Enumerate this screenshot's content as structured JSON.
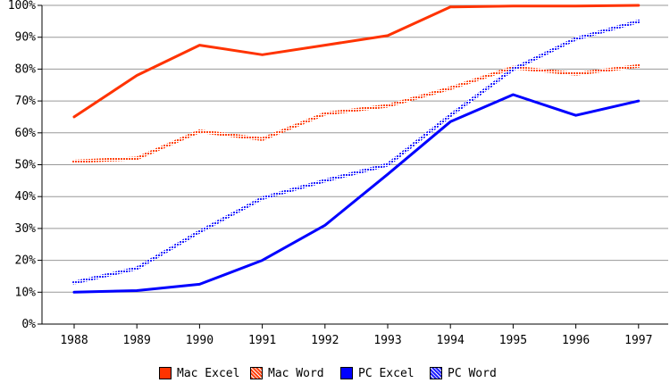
{
  "chart_data": {
    "type": "line",
    "title": "",
    "xlabel": "",
    "ylabel": "",
    "x": [
      1988,
      1989,
      1990,
      1991,
      1992,
      1993,
      1994,
      1995,
      1996,
      1997
    ],
    "ylim": [
      0,
      100
    ],
    "yticks": [
      "0%",
      "10%",
      "20%",
      "30%",
      "40%",
      "50%",
      "60%",
      "70%",
      "80%",
      "90%",
      "100%"
    ],
    "xticks": [
      "1988",
      "1989",
      "1990",
      "1991",
      "1992",
      "1993",
      "1994",
      "1995",
      "1996",
      "1997"
    ],
    "grid": true,
    "legend_position": "bottom",
    "series": [
      {
        "name": "Mac Excel",
        "color": "#ff3300",
        "style": "solid",
        "values": [
          65,
          78,
          87.5,
          84.5,
          87.5,
          90.5,
          99.5,
          99.8,
          99.8,
          100
        ]
      },
      {
        "name": "Mac Word",
        "color": "#ff5522",
        "style": "dotted",
        "values": [
          51,
          52,
          60.5,
          58,
          66,
          68.5,
          74,
          80.5,
          78.5,
          81
        ]
      },
      {
        "name": "PC Excel",
        "color": "#0000ff",
        "style": "solid",
        "values": [
          10,
          10.5,
          12.5,
          20,
          31,
          47,
          63.5,
          72,
          65.5,
          70
        ]
      },
      {
        "name": "PC Word",
        "color": "#3333ff",
        "style": "dotted",
        "values": [
          13,
          17.5,
          29,
          39.5,
          45,
          50,
          65.5,
          80,
          89.5,
          95
        ]
      }
    ]
  }
}
